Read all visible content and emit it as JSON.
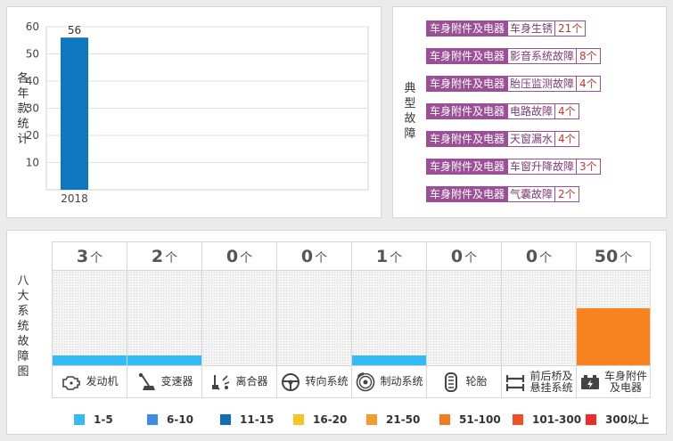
{
  "year_panel": {
    "title_chars": [
      "各",
      "年",
      "款",
      "统",
      "计"
    ]
  },
  "chart_data": {
    "type": "bar",
    "categories": [
      "2018"
    ],
    "values": [
      56
    ],
    "data_labels": [
      "56"
    ],
    "ylim": [
      0,
      60
    ],
    "yticks": [
      10,
      20,
      30,
      40,
      50,
      60
    ],
    "grid": true,
    "bar_color": "#0f77bf"
  },
  "faults_panel": {
    "title_chars": [
      "典",
      "型",
      "故",
      "障"
    ],
    "items": [
      {
        "category": "车身附件及电器",
        "name": "车身生锈",
        "count": "21个"
      },
      {
        "category": "车身附件及电器",
        "name": "影音系统故障",
        "count": "8个"
      },
      {
        "category": "车身附件及电器",
        "name": "胎压监测故障",
        "count": "4个"
      },
      {
        "category": "车身附件及电器",
        "name": "电路故障",
        "count": "4个"
      },
      {
        "category": "车身附件及电器",
        "name": "天窗漏水",
        "count": "4个"
      },
      {
        "category": "车身附件及电器",
        "name": "车窗升降故障",
        "count": "3个"
      },
      {
        "category": "车身附件及电器",
        "name": "气囊故障",
        "count": "2个"
      }
    ]
  },
  "systems_panel": {
    "title_chars": [
      "八",
      "大",
      "系",
      "统",
      "故",
      "障",
      "图"
    ],
    "unit": "个",
    "systems": [
      {
        "name": "发动机",
        "count": "3",
        "icon": "engine-icon",
        "level": 0.1,
        "color": "#33bbf5"
      },
      {
        "name": "变速器",
        "count": "2",
        "icon": "gear-shift-icon",
        "level": 0.1,
        "color": "#33bbf5"
      },
      {
        "name": "离合器",
        "count": "0",
        "icon": "clutch-icon",
        "level": 0,
        "color": "#33bbf5"
      },
      {
        "name": "转向系统",
        "count": "0",
        "icon": "steering-wheel-icon",
        "level": 0,
        "color": "#33bbf5"
      },
      {
        "name": "制动系统",
        "count": "1",
        "icon": "brake-disc-icon",
        "level": 0.1,
        "color": "#33bbf5"
      },
      {
        "name": "轮胎",
        "count": "0",
        "icon": "tire-icon",
        "level": 0,
        "color": "#33bbf5"
      },
      {
        "name": "前后桥及悬挂系统",
        "name_lines": [
          "前后桥及",
          "悬挂系统"
        ],
        "count": "0",
        "icon": "axle-icon",
        "level": 0,
        "color": "#33bbf5"
      },
      {
        "name": "车身附件及电器",
        "name_lines": [
          "车身附件",
          "及电器"
        ],
        "count": "50",
        "icon": "car-battery-icon",
        "level": 0.6,
        "color": "#f7841f"
      }
    ],
    "legend": [
      {
        "label": "1-5",
        "color": "#33bbf5"
      },
      {
        "label": "6-10",
        "color": "#3a8ee6"
      },
      {
        "label": "11-15",
        "color": "#0f6fb8"
      },
      {
        "label": "16-20",
        "color": "#f6c522"
      },
      {
        "label": "21-50",
        "color": "#f39c2b"
      },
      {
        "label": "51-100",
        "color": "#f47c20"
      },
      {
        "label": "101-300",
        "color": "#f05022"
      },
      {
        "label": "300以上",
        "color": "#ee2a2a"
      }
    ]
  }
}
